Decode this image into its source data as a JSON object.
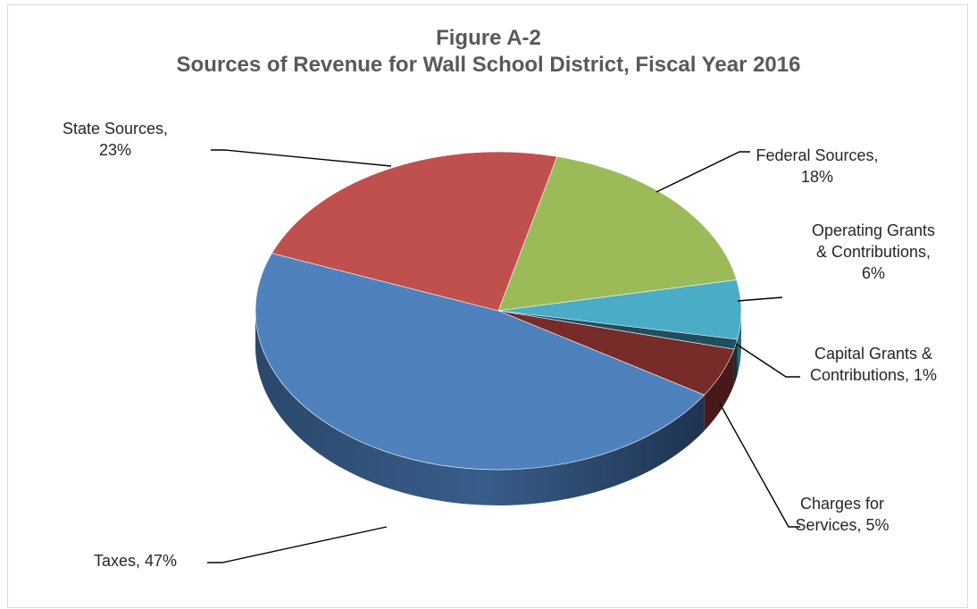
{
  "chart_data": {
    "type": "pie",
    "title": "Figure A-2",
    "subtitle": "Sources of Revenue for Wall School District, Fiscal Year 2016",
    "slices": [
      {
        "label": "Federal Sources, 18%",
        "lines": [
          "Federal Sources,",
          "18%"
        ],
        "value": 18,
        "color": "#9bbb59"
      },
      {
        "label": "Operating Grants & Contributions, 6%",
        "lines": [
          "Operating Grants",
          "& Contributions,",
          "6%"
        ],
        "value": 6,
        "color": "#4bacc6"
      },
      {
        "label": "Capital Grants & Contributions, 1%",
        "lines": [
          "Capital Grants &",
          "Contributions, 1%"
        ],
        "value": 1,
        "color": "#1f4e5f"
      },
      {
        "label": "Charges for Services, 5%",
        "lines": [
          "Charges for",
          "Services, 5%"
        ],
        "value": 5,
        "color": "#772c2a"
      },
      {
        "label": "Taxes, 47%",
        "lines": [
          "Taxes, 47%"
        ],
        "value": 47,
        "color": "#4f81bd"
      },
      {
        "label": "State Sources, 23%",
        "lines": [
          "State Sources,",
          "23%"
        ],
        "value": 23,
        "color": "#c0504d"
      }
    ],
    "legend": "none",
    "data_labels": "outside-with-leader-lines"
  }
}
